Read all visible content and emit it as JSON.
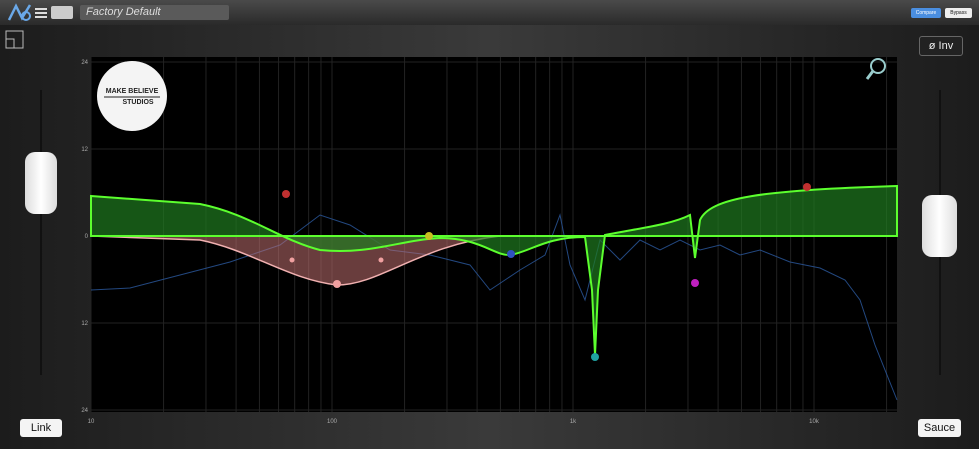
{
  "header": {
    "preset": "Factory Default",
    "compare": "Compare",
    "bypass": "Bypass"
  },
  "controls": {
    "invert": "ø Inv",
    "link": "Link",
    "sauce": "Sauce"
  },
  "logo": {
    "line1": "MAKE BELIEVE",
    "line2": "STUDIOS"
  },
  "graph": {
    "y_labels": [
      "24",
      "12",
      "0",
      "12",
      "24"
    ],
    "x_labels": [
      "10",
      "100",
      "1k",
      "10k"
    ]
  }
}
